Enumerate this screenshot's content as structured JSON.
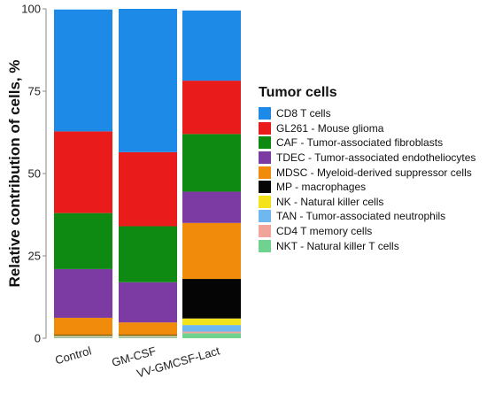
{
  "chart_data": {
    "type": "bar",
    "stacked": true,
    "categories": [
      "Control",
      "GM-CSF",
      "VV-GMCSF-Lact"
    ],
    "ylabel": "Relative contribution of cells, %",
    "xlabel": "",
    "ylim": [
      0,
      100
    ],
    "yticks": [
      "0",
      "25",
      "50",
      "75",
      "100"
    ],
    "grid": false,
    "legend_title": "Tumor cells",
    "legend_position": "right",
    "series": [
      {
        "name": "NKT - Natural killer T cells",
        "color": "#6fd38f",
        "values": [
          0.2,
          0.2,
          1.5
        ]
      },
      {
        "name": "CD4 T memory cells",
        "color": "#f0a49a",
        "values": [
          0.2,
          0.2,
          0.5
        ]
      },
      {
        "name": "TAN - Tumor-associated neutrophils",
        "color": "#6fb7ef",
        "values": [
          0.2,
          0.2,
          2.0
        ]
      },
      {
        "name": "NK - Natural killer cells",
        "color": "#f4e21a",
        "values": [
          0.2,
          0.2,
          2.0
        ]
      },
      {
        "name": "MP - macrophages",
        "color": "#050505",
        "values": [
          0.2,
          0.2,
          12.0
        ]
      },
      {
        "name": "MDSC - Myeloid-derived suppressor cells",
        "color": "#f18b0b",
        "values": [
          5.2,
          3.8,
          17.0
        ]
      },
      {
        "name": "TDEC - Tumor-associated endotheliocytes",
        "color": "#7c3aa3",
        "values": [
          14.8,
          12.2,
          9.5
        ]
      },
      {
        "name": "CAF - Tumor-associated fibroblasts",
        "color": "#0e8a12",
        "values": [
          17.0,
          17.0,
          17.5
        ]
      },
      {
        "name": "GL261 - Mouse glioma",
        "color": "#ea1b1b",
        "values": [
          24.8,
          22.5,
          16.2
        ]
      },
      {
        "name": "CD8 T cells",
        "color": "#1d8ae8",
        "values": [
          37.0,
          43.5,
          21.3
        ]
      }
    ]
  }
}
